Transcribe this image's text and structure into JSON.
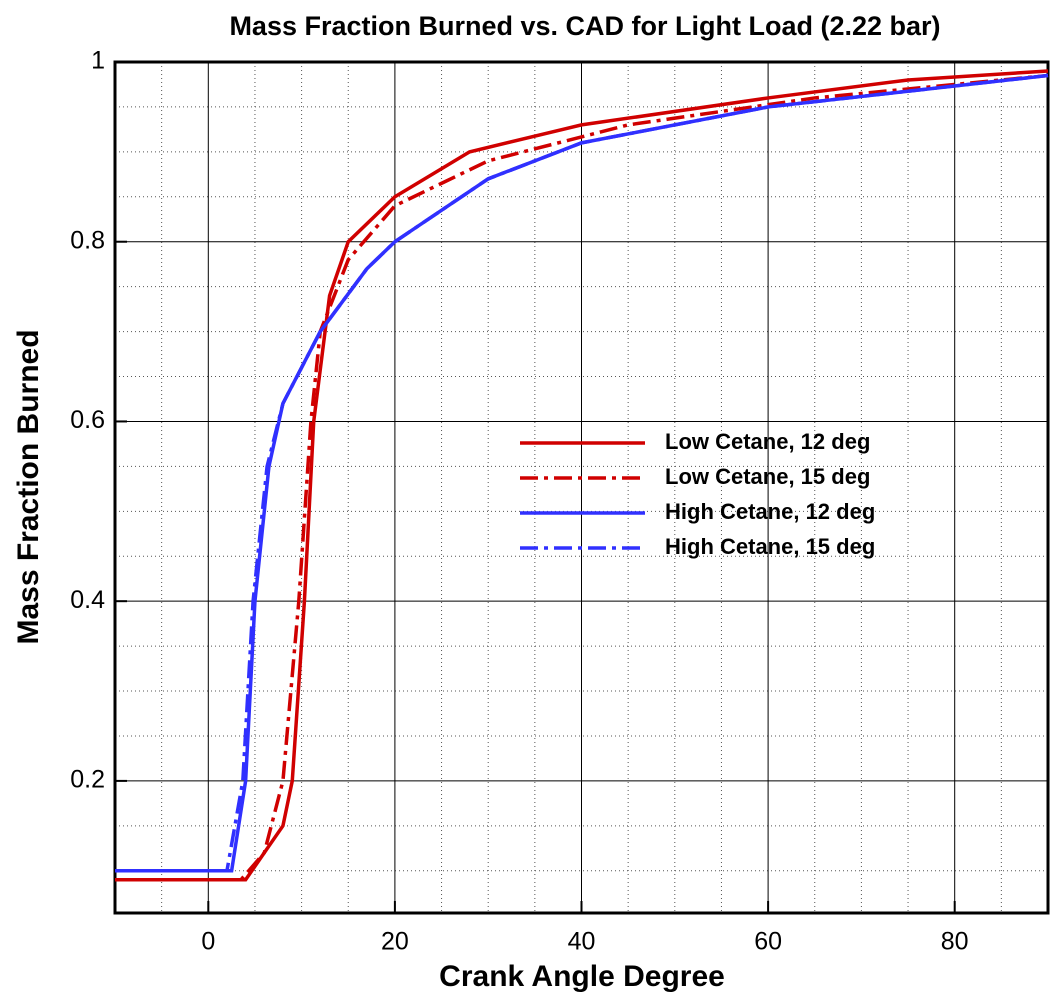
{
  "chart_data": {
    "type": "line",
    "title": "Mass Fraction Burned vs. CAD for Light Load (2.22 bar)",
    "xlabel": "Crank Angle Degree",
    "ylabel": "Mass Fraction Burned",
    "xlim": [
      -10,
      90
    ],
    "ylim": [
      0.053,
      1
    ],
    "xticks": [
      0,
      20,
      40,
      60,
      80
    ],
    "yticks": [
      0.2,
      0.4,
      0.6,
      0.8,
      1
    ],
    "xminorticks": [
      -5,
      5,
      10,
      15,
      25,
      30,
      35,
      45,
      50,
      55,
      65,
      70,
      75,
      85
    ],
    "yminorticks": [
      0.1,
      0.15,
      0.25,
      0.3,
      0.35,
      0.45,
      0.5,
      0.55,
      0.65,
      0.7,
      0.75,
      0.85,
      0.9,
      0.95
    ],
    "grid": true,
    "legend": "right",
    "series": [
      {
        "name": "Low Cetane, 12 deg",
        "color": "#d00000",
        "style": "solid",
        "x": [
          -10,
          4,
          6,
          8,
          9,
          10.3,
          11.3,
          13,
          15,
          20,
          28,
          40,
          60,
          75,
          90
        ],
        "values": [
          0.09,
          0.09,
          0.12,
          0.15,
          0.2,
          0.4,
          0.6,
          0.74,
          0.8,
          0.85,
          0.9,
          0.93,
          0.96,
          0.98,
          0.99
        ]
      },
      {
        "name": "Low Cetane, 15 deg",
        "color": "#d00000",
        "style": "dashdot",
        "x": [
          -10,
          3.5,
          6,
          8,
          9.7,
          11,
          12,
          15,
          20,
          30,
          45,
          65,
          90
        ],
        "values": [
          0.09,
          0.09,
          0.12,
          0.2,
          0.4,
          0.6,
          0.7,
          0.78,
          0.84,
          0.89,
          0.93,
          0.96,
          0.985
        ]
      },
      {
        "name": "High Cetane, 12 deg",
        "color": "#3030ff",
        "style": "solid",
        "x": [
          -10,
          2.5,
          4,
          5,
          6.5,
          8,
          12,
          17,
          20,
          30,
          40,
          60,
          90
        ],
        "values": [
          0.1,
          0.1,
          0.2,
          0.4,
          0.55,
          0.62,
          0.7,
          0.77,
          0.8,
          0.87,
          0.91,
          0.95,
          0.985
        ]
      },
      {
        "name": "High Cetane, 15 deg",
        "color": "#3030ff",
        "style": "dashdot",
        "x": [
          -10,
          2,
          3.7,
          4.8,
          6.3,
          8,
          12,
          17,
          20,
          30,
          40,
          60,
          90
        ],
        "values": [
          0.1,
          0.1,
          0.2,
          0.4,
          0.55,
          0.62,
          0.7,
          0.77,
          0.8,
          0.87,
          0.91,
          0.95,
          0.985
        ]
      }
    ]
  }
}
